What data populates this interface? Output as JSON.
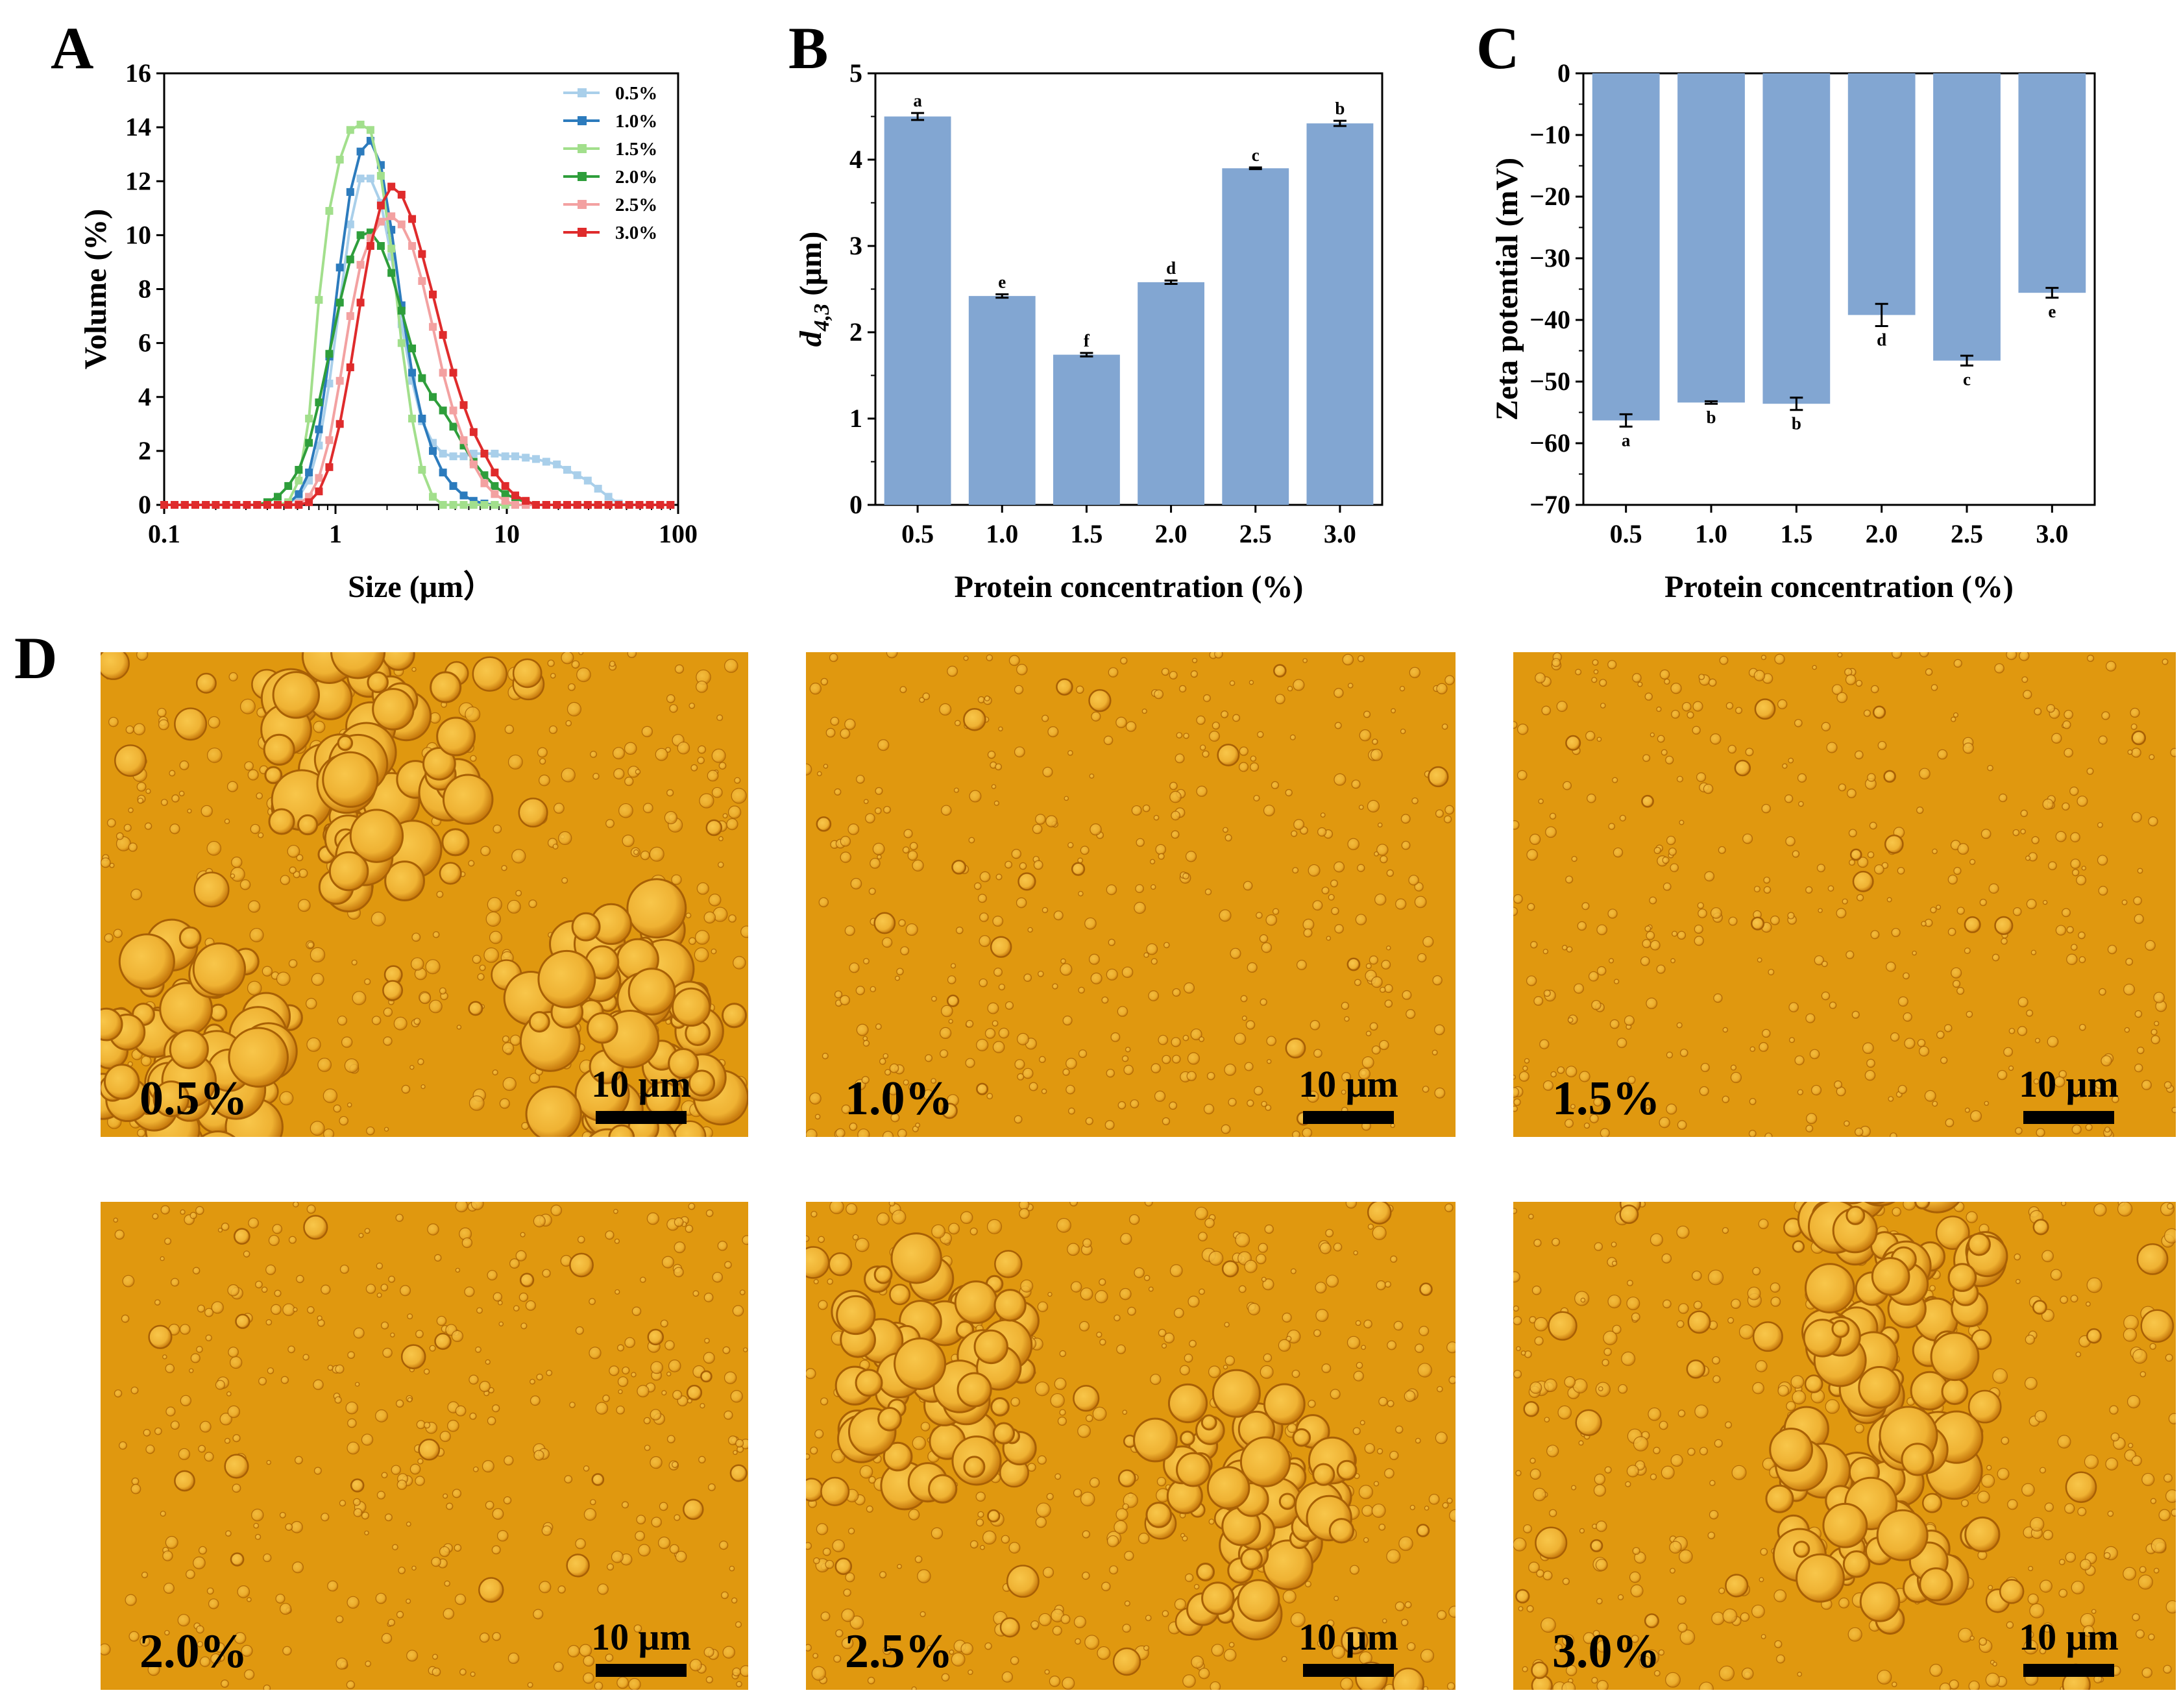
{
  "panels": {
    "A": "A",
    "B": "B",
    "C": "C",
    "D": "D"
  },
  "colors": {
    "bar_fill": "#82a6d2",
    "micrograph_bg": "#e0980f",
    "droplet_fill": "#f0b536",
    "droplet_edge": "#a86005",
    "series": [
      "#a9cfea",
      "#2c7bbd",
      "#a2df8c",
      "#2e9e3b",
      "#f3a1a1",
      "#df2b2c"
    ]
  },
  "chart_data": [
    {
      "type": "line",
      "title": "",
      "xlabel": "Size (μm）",
      "ylabel": "Volume (%)",
      "xscale": "log",
      "xlim": [
        0.1,
        100
      ],
      "ylim": [
        0,
        16
      ],
      "x_ticks": [
        0.1,
        1,
        10,
        100
      ],
      "x_tick_labels": [
        "0.1",
        "1",
        "10",
        "100"
      ],
      "y_ticks": [
        0,
        2,
        4,
        6,
        8,
        10,
        12,
        14,
        16
      ],
      "y_tick_labels": [
        "0",
        "2",
        "4",
        "6",
        "8",
        "10",
        "12",
        "14",
        "16"
      ],
      "legend_position": "top-right",
      "x": [
        0.1,
        0.115,
        0.132,
        0.152,
        0.175,
        0.2,
        0.23,
        0.264,
        0.304,
        0.349,
        0.4,
        0.46,
        0.53,
        0.61,
        0.7,
        0.8,
        0.92,
        1.06,
        1.22,
        1.4,
        1.6,
        1.84,
        2.12,
        2.43,
        2.8,
        3.2,
        3.7,
        4.24,
        4.87,
        5.6,
        6.4,
        7.4,
        8.5,
        9.8,
        11.2,
        12.9,
        14.8,
        17,
        19.6,
        22.5,
        25.8,
        29.7,
        34.1,
        39.2,
        45,
        51.8,
        59.5,
        68.4,
        78.6,
        90.3
      ],
      "series": [
        {
          "name": "0.5%",
          "values": [
            0,
            0,
            0,
            0,
            0,
            0,
            0,
            0,
            0,
            0,
            0,
            0,
            0.05,
            0.3,
            0.9,
            2.2,
            4.5,
            7.5,
            10.4,
            12.1,
            12.1,
            11.2,
            9.2,
            6.7,
            4.6,
            3.1,
            2.3,
            1.9,
            1.8,
            1.8,
            1.9,
            1.9,
            1.9,
            1.8,
            1.8,
            1.75,
            1.7,
            1.6,
            1.5,
            1.3,
            1.1,
            0.9,
            0.6,
            0.3,
            0.05,
            0,
            0,
            0,
            0,
            0
          ]
        },
        {
          "name": "1.0%",
          "values": [
            0,
            0,
            0,
            0,
            0,
            0,
            0,
            0,
            0,
            0,
            0,
            0,
            0.05,
            0.4,
            1.2,
            2.8,
            5.5,
            8.8,
            11.6,
            13.1,
            13.5,
            12.6,
            10.2,
            7.4,
            4.9,
            3.2,
            2.0,
            1.2,
            0.7,
            0.35,
            0.15,
            0.05,
            0,
            0,
            0,
            0,
            0,
            0,
            0,
            0,
            0,
            0,
            0,
            0,
            0,
            0,
            0,
            0,
            0,
            0
          ]
        },
        {
          "name": "1.5%",
          "values": [
            0,
            0,
            0,
            0,
            0,
            0,
            0,
            0,
            0,
            0,
            0,
            0,
            0.1,
            0.9,
            3.2,
            7.6,
            10.9,
            12.8,
            13.9,
            14.1,
            13.9,
            12.2,
            9.5,
            6.0,
            3.2,
            1.3,
            0.3,
            0,
            0,
            0,
            0,
            0,
            0,
            0,
            0,
            0,
            0,
            0,
            0,
            0,
            0,
            0,
            0,
            0,
            0,
            0,
            0,
            0,
            0,
            0
          ]
        },
        {
          "name": "2.0%",
          "values": [
            0,
            0,
            0,
            0,
            0,
            0,
            0,
            0,
            0,
            0,
            0.1,
            0.3,
            0.7,
            1.3,
            2.3,
            3.8,
            5.6,
            7.5,
            9.1,
            10.0,
            10.1,
            9.6,
            8.6,
            7.2,
            5.8,
            4.7,
            4.0,
            3.5,
            2.9,
            2.2,
            1.6,
            1.1,
            0.7,
            0.4,
            0.25,
            0.1,
            0,
            0,
            0,
            0,
            0,
            0,
            0,
            0,
            0,
            0,
            0,
            0,
            0,
            0
          ]
        },
        {
          "name": "2.5%",
          "values": [
            0,
            0,
            0,
            0,
            0,
            0,
            0,
            0,
            0,
            0,
            0,
            0,
            0,
            0.05,
            0.3,
            1.0,
            2.4,
            4.6,
            7.0,
            8.9,
            9.9,
            10.5,
            10.7,
            10.4,
            9.6,
            8.3,
            6.6,
            4.9,
            3.5,
            2.4,
            1.5,
            0.8,
            0.4,
            0.15,
            0,
            0,
            0,
            0,
            0,
            0,
            0,
            0,
            0,
            0,
            0,
            0,
            0,
            0,
            0,
            0
          ]
        },
        {
          "name": "3.0%",
          "values": [
            0,
            0,
            0,
            0,
            0,
            0,
            0,
            0,
            0,
            0,
            0,
            0,
            0,
            0,
            0.1,
            0.5,
            1.4,
            3.0,
            5.1,
            7.5,
            9.6,
            11.1,
            11.8,
            11.5,
            10.6,
            9.3,
            7.8,
            6.3,
            4.9,
            3.7,
            2.7,
            1.9,
            1.2,
            0.7,
            0.35,
            0.15,
            0,
            0,
            0,
            0,
            0,
            0,
            0,
            0,
            0,
            0,
            0,
            0,
            0,
            0
          ]
        }
      ]
    },
    {
      "type": "bar",
      "title": "",
      "xlabel": "Protein concentration (%)",
      "ylabel": "d4,3 (μm)",
      "ylabel_main": "d",
      "ylabel_sub": "4,3",
      "ylabel_unit": " (μm)",
      "ylim": [
        0,
        5
      ],
      "y_ticks": [
        0,
        1,
        2,
        3,
        4,
        5
      ],
      "y_tick_labels": [
        "0",
        "1",
        "2",
        "3",
        "4",
        "5"
      ],
      "categories": [
        "0.5",
        "1.0",
        "1.5",
        "2.0",
        "2.5",
        "3.0"
      ],
      "values": [
        4.5,
        2.42,
        1.74,
        2.58,
        3.9,
        4.42
      ],
      "errors": [
        0.04,
        0.02,
        0.02,
        0.02,
        0.01,
        0.03
      ],
      "significance": [
        "a",
        "e",
        "f",
        "d",
        "c",
        "b"
      ]
    },
    {
      "type": "bar",
      "title": "",
      "xlabel": "Protein concentration (%)",
      "ylabel": "Zeta potential (mV)",
      "ylim": [
        -70,
        0
      ],
      "y_ticks": [
        0,
        -10,
        -20,
        -30,
        -40,
        -50,
        -60,
        -70
      ],
      "y_tick_labels": [
        "0",
        "−10",
        "−20",
        "−30",
        "−40",
        "−50",
        "−60",
        "−70"
      ],
      "categories": [
        "0.5",
        "1.0",
        "1.5",
        "2.0",
        "2.5",
        "3.0"
      ],
      "values": [
        -56.3,
        -53.4,
        -53.6,
        -39.2,
        -46.6,
        -35.6
      ],
      "errors": [
        1.0,
        0.2,
        1.0,
        1.8,
        0.8,
        0.8
      ],
      "significance": [
        "a",
        "b",
        "b",
        "d",
        "c",
        "e"
      ]
    }
  ],
  "micrographs": {
    "scale_bar_label": "10 μm",
    "images": [
      {
        "label": "0.5%",
        "size_level": 0.9,
        "clusters": [
          [
            0.42,
            0.25
          ],
          [
            0.15,
            0.83
          ],
          [
            0.82,
            0.78
          ]
        ]
      },
      {
        "label": "1.0%",
        "size_level": 0.25,
        "clusters": []
      },
      {
        "label": "1.5%",
        "size_level": 0.1,
        "clusters": []
      },
      {
        "label": "2.0%",
        "size_level": 0.35,
        "clusters": []
      },
      {
        "label": "2.5%",
        "size_level": 0.75,
        "clusters": [
          [
            0.68,
            0.6
          ],
          [
            0.2,
            0.35
          ]
        ]
      },
      {
        "label": "3.0%",
        "size_level": 0.85,
        "clusters": [
          [
            0.56,
            0.6
          ],
          [
            0.6,
            0.15
          ]
        ]
      }
    ]
  }
}
